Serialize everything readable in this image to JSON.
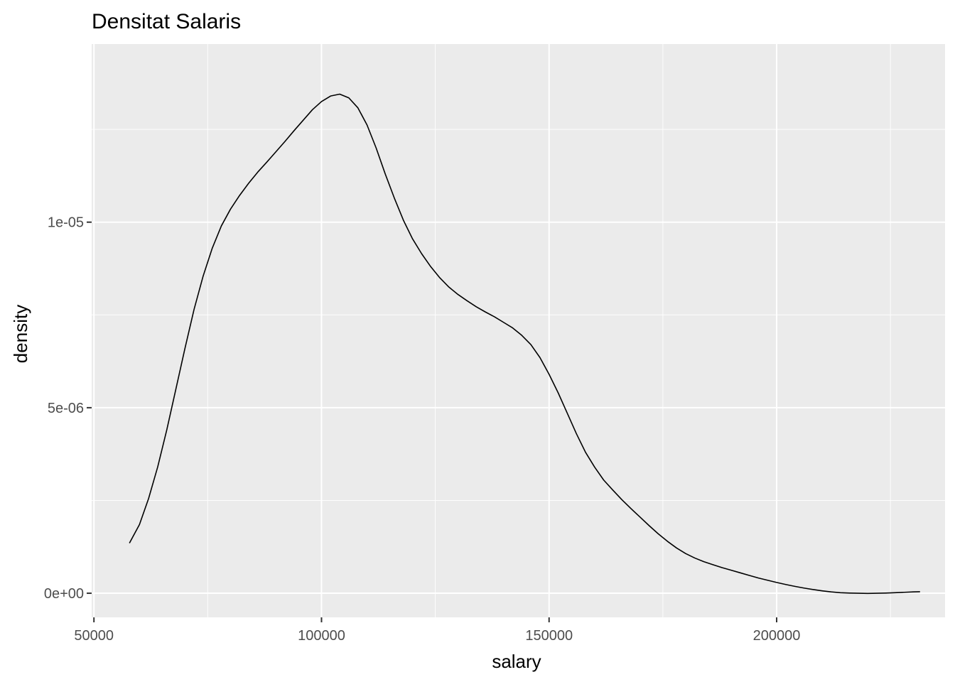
{
  "chart_data": {
    "type": "line",
    "title": "Densitat Salaris",
    "xlabel": "salary",
    "ylabel": "density",
    "xlim": [
      49500,
      237000
    ],
    "ylim": [
      -6.5e-07,
      1.48e-05
    ],
    "x_ticks": [
      50000,
      100000,
      150000,
      200000
    ],
    "x_tick_labels": [
      "50000",
      "100000",
      "150000",
      "200000"
    ],
    "x_minor_ticks": [
      75000,
      125000,
      175000,
      225000
    ],
    "y_ticks": [
      0,
      5e-06,
      1e-05
    ],
    "y_tick_labels": [
      "0e+00",
      "5e-06",
      "1e-05"
    ],
    "y_minor_ticks": [
      2.5e-06,
      7.5e-06,
      1.25e-05
    ],
    "grid": true,
    "background": "#ebebeb",
    "line_color": "#000000",
    "series": [
      {
        "x": [
          57800,
          60000,
          62000,
          64000,
          66000,
          68000,
          70000,
          72000,
          74000,
          76000,
          78000,
          80000,
          82000,
          84000,
          86000,
          88000,
          90000,
          92000,
          94000,
          96000,
          98000,
          100000,
          102000,
          104000,
          106000,
          108000,
          110000,
          112000,
          114000,
          116000,
          118000,
          120000,
          122000,
          124000,
          126000,
          128000,
          130000,
          132000,
          134000,
          136000,
          138000,
          140000,
          142000,
          144000,
          146000,
          148000,
          150000,
          152000,
          154000,
          156000,
          158000,
          160000,
          162000,
          164000,
          166000,
          168000,
          170000,
          172000,
          174000,
          176000,
          178000,
          180000,
          182000,
          184000,
          186000,
          188000,
          190000,
          192000,
          194000,
          196000,
          198000,
          200000,
          202000,
          204000,
          206000,
          208000,
          210000,
          212000,
          214000,
          216000,
          218000,
          220000,
          222000,
          224000,
          226000,
          228000,
          230000,
          231500
        ],
        "y": [
          1.35e-06,
          1.85e-06,
          2.55e-06,
          3.4e-06,
          4.4e-06,
          5.5e-06,
          6.6e-06,
          7.65e-06,
          8.55e-06,
          9.3e-06,
          9.9e-06,
          1.035e-05,
          1.072e-05,
          1.105e-05,
          1.135e-05,
          1.162e-05,
          1.19e-05,
          1.218e-05,
          1.247e-05,
          1.275e-05,
          1.303e-05,
          1.325e-05,
          1.34e-05,
          1.345e-05,
          1.335e-05,
          1.308e-05,
          1.262e-05,
          1.2e-05,
          1.13e-05,
          1.065e-05,
          1.005e-05,
          9.55e-06,
          9.15e-06,
          8.8e-06,
          8.5e-06,
          8.25e-06,
          8.05e-06,
          7.88e-06,
          7.72e-06,
          7.58e-06,
          7.45e-06,
          7.3e-06,
          7.15e-06,
          6.95e-06,
          6.7e-06,
          6.35e-06,
          5.9e-06,
          5.4e-06,
          4.85e-06,
          4.3e-06,
          3.8e-06,
          3.4e-06,
          3.05e-06,
          2.78e-06,
          2.52e-06,
          2.28e-06,
          2.05e-06,
          1.82e-06,
          1.6e-06,
          1.4e-06,
          1.22e-06,
          1.07e-06,
          9.5e-07,
          8.5e-07,
          7.7e-07,
          6.9e-07,
          6.2e-07,
          5.5e-07,
          4.8e-07,
          4.1e-07,
          3.5e-07,
          2.9e-07,
          2.35e-07,
          1.85e-07,
          1.4e-07,
          1e-07,
          6.5e-08,
          3.5e-08,
          1.5e-08,
          5e-09,
          0,
          -5e-09,
          0,
          5e-09,
          1.5e-08,
          2.5e-08,
          3.5e-08,
          4e-08
        ]
      }
    ]
  }
}
